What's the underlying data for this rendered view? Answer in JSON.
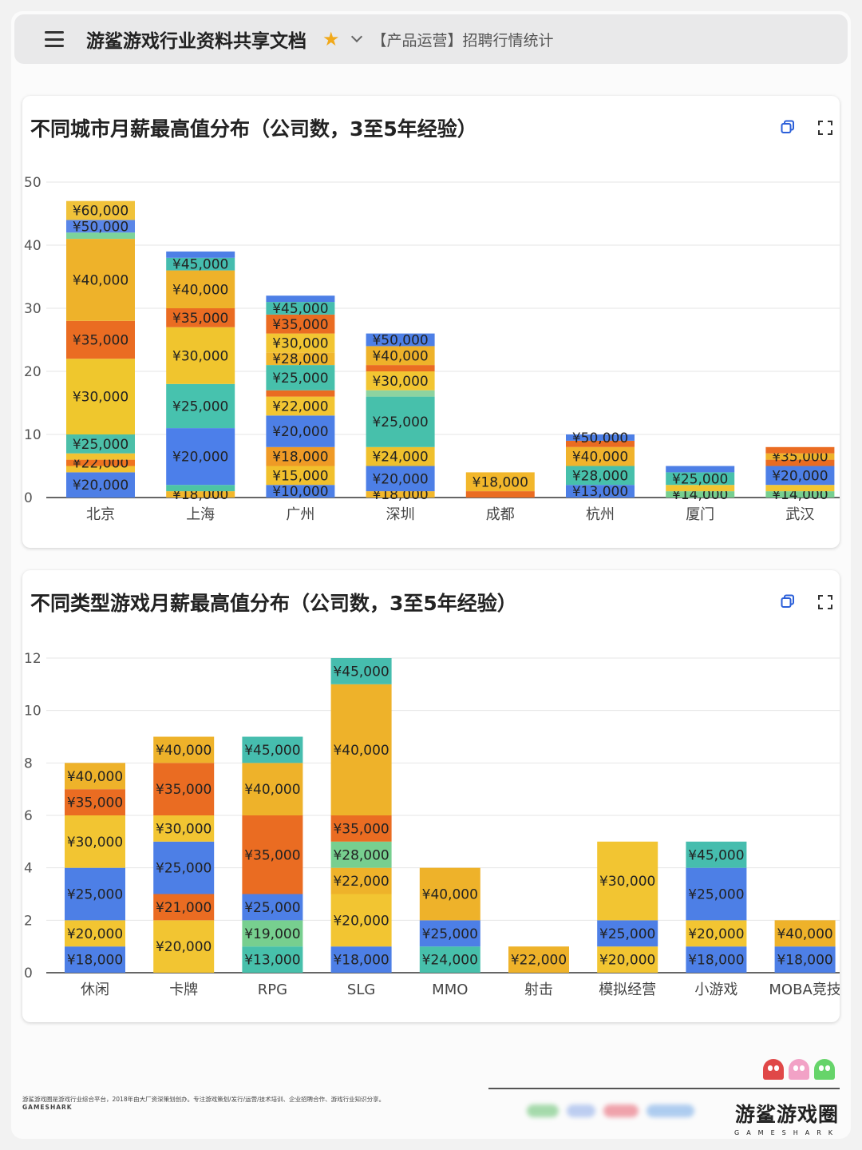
{
  "header": {
    "doc_title": "游鲨游戏行业资料共享文档",
    "sheet_name": "【产品运营】招聘行情统计"
  },
  "icons": {
    "menu": "menu-icon",
    "star": "star-icon",
    "dropdown": "chevron-down-icon",
    "copy": "copy-icon",
    "expand": "expand-icon"
  },
  "chart_data": [
    {
      "type": "bar",
      "stacked": true,
      "title": "不同城市月薪最高值分布（公司数，3至5年经验）",
      "xlabel": "",
      "ylabel": "",
      "ylim": [
        0,
        50
      ],
      "yticks": [
        "0",
        "10",
        "20",
        "30",
        "40",
        "50"
      ],
      "grid": true,
      "categories": [
        "北京",
        "上海",
        "广州",
        "深圳",
        "成都",
        "杭州",
        "厦门",
        "武汉"
      ],
      "stacks": [
        [
          {
            "value": 4,
            "label": "¥20,000",
            "color": "#4e7fe6"
          },
          {
            "value": 1,
            "label": "",
            "color": "#f2c232"
          },
          {
            "value": 1,
            "label": "¥22,000",
            "color": "#ef7320"
          },
          {
            "value": 1,
            "label": "",
            "color": "#f2c232"
          },
          {
            "value": 3,
            "label": "¥25,000",
            "color": "#4cbfa8"
          },
          {
            "value": 12,
            "label": "¥30,000",
            "color": "#efc72d"
          },
          {
            "value": 6,
            "label": "¥35,000",
            "color": "#ea6c22"
          },
          {
            "value": 13,
            "label": "¥40,000",
            "color": "#eeb22a"
          },
          {
            "value": 1,
            "label": "",
            "color": "#7cd39b"
          },
          {
            "value": 2,
            "label": "¥50,000",
            "color": "#5a86e8"
          },
          {
            "value": 3,
            "label": "¥60,000",
            "color": "#f0c23a"
          }
        ],
        [
          {
            "value": 1,
            "label": "¥18,000",
            "color": "#f2b72b"
          },
          {
            "value": 1,
            "label": "",
            "color": "#4cc4a4"
          },
          {
            "value": 9,
            "label": "¥20,000",
            "color": "#4c7fea"
          },
          {
            "value": 7,
            "label": "¥25,000",
            "color": "#47c2ae"
          },
          {
            "value": 9,
            "label": "¥30,000",
            "color": "#f0c52e"
          },
          {
            "value": 3,
            "label": "¥35,000",
            "color": "#ea6c22"
          },
          {
            "value": 6,
            "label": "¥40,000",
            "color": "#eeb22a"
          },
          {
            "value": 2,
            "label": "¥45,000",
            "color": "#45bcae"
          },
          {
            "value": 1,
            "label": "",
            "color": "#4d7fe6"
          }
        ],
        [
          {
            "value": 2,
            "label": "¥10,000",
            "color": "#4d7fe6"
          },
          {
            "value": 3,
            "label": "¥15,000",
            "color": "#f1c02d"
          },
          {
            "value": 3,
            "label": "¥18,000",
            "color": "#ef9a26"
          },
          {
            "value": 5,
            "label": "¥20,000",
            "color": "#4d7fe6"
          },
          {
            "value": 3,
            "label": "¥22,000",
            "color": "#f2c532"
          },
          {
            "value": 1,
            "label": "",
            "color": "#ea6c22"
          },
          {
            "value": 4,
            "label": "¥25,000",
            "color": "#47c0ab"
          },
          {
            "value": 2,
            "label": "¥28,000",
            "color": "#f0b62d"
          },
          {
            "value": 3,
            "label": "¥30,000",
            "color": "#f2c532"
          },
          {
            "value": 3,
            "label": "¥35,000",
            "color": "#ea6c22"
          },
          {
            "value": 2,
            "label": "¥45,000",
            "color": "#46bdae"
          },
          {
            "value": 1,
            "label": "",
            "color": "#4d7fe6"
          }
        ],
        [
          {
            "value": 1,
            "label": "¥18,000",
            "color": "#f2b72b"
          },
          {
            "value": 4,
            "label": "¥20,000",
            "color": "#4d7fe6"
          },
          {
            "value": 3,
            "label": "¥24,000",
            "color": "#efc02d"
          },
          {
            "value": 8,
            "label": "¥25,000",
            "color": "#47c0ab"
          },
          {
            "value": 1,
            "label": "",
            "color": "#8dd3a0"
          },
          {
            "value": 3,
            "label": "¥30,000",
            "color": "#f2c532"
          },
          {
            "value": 1,
            "label": "",
            "color": "#ea6c22"
          },
          {
            "value": 3,
            "label": "¥40,000",
            "color": "#eeb22a"
          },
          {
            "value": 2,
            "label": "¥50,000",
            "color": "#4d7fe6"
          }
        ],
        [
          {
            "value": 1,
            "label": "",
            "color": "#ea6c22"
          },
          {
            "value": 3,
            "label": "¥18,000",
            "color": "#f2b72b"
          }
        ],
        [
          {
            "value": 2,
            "label": "¥13,000",
            "color": "#4d7fe6"
          },
          {
            "value": 3,
            "label": "¥28,000",
            "color": "#47c0ab"
          },
          {
            "value": 3,
            "label": "¥40,000",
            "color": "#f0b32c"
          },
          {
            "value": 1,
            "label": "",
            "color": "#ea6c22"
          },
          {
            "value": 1,
            "label": "¥50,000",
            "color": "#4d7fe6"
          }
        ],
        [
          {
            "value": 1,
            "label": "¥14,000",
            "color": "#77cf8f"
          },
          {
            "value": 1,
            "label": "",
            "color": "#f2c532"
          },
          {
            "value": 2,
            "label": "¥25,000",
            "color": "#47c0ab"
          },
          {
            "value": 1,
            "label": "",
            "color": "#4d7fe6"
          }
        ],
        [
          {
            "value": 1,
            "label": "¥14,000",
            "color": "#77cf8f"
          },
          {
            "value": 1,
            "label": "",
            "color": "#f2c532"
          },
          {
            "value": 3,
            "label": "¥20,000",
            "color": "#4d7fe6"
          },
          {
            "value": 1,
            "label": "",
            "color": "#ea6c22"
          },
          {
            "value": 1,
            "label": "¥35,000",
            "color": "#eeb22a"
          },
          {
            "value": 1,
            "label": "",
            "color": "#ea6c22"
          }
        ]
      ]
    },
    {
      "type": "bar",
      "stacked": true,
      "title": "不同类型游戏月薪最高值分布（公司数，3至5年经验）",
      "xlabel": "",
      "ylabel": "",
      "ylim": [
        0,
        12
      ],
      "yticks": [
        "0",
        "2",
        "4",
        "6",
        "8",
        "10",
        "12"
      ],
      "grid": true,
      "categories": [
        "休闲",
        "卡牌",
        "RPG",
        "SLG",
        "MMO",
        "射击",
        "模拟经营",
        "小游戏",
        "MOBA竞技"
      ],
      "stacks": [
        [
          {
            "value": 1,
            "label": "¥18,000",
            "color": "#4d7fe6"
          },
          {
            "value": 1,
            "label": "¥20,000",
            "color": "#f2c532"
          },
          {
            "value": 2,
            "label": "¥25,000",
            "color": "#4d7fe6"
          },
          {
            "value": 2,
            "label": "¥30,000",
            "color": "#f2c532"
          },
          {
            "value": 1,
            "label": "¥35,000",
            "color": "#ea6c22"
          },
          {
            "value": 1,
            "label": "¥40,000",
            "color": "#eeb22a"
          }
        ],
        [
          {
            "value": 2,
            "label": "¥20,000",
            "color": "#f2c532"
          },
          {
            "value": 1,
            "label": "¥21,000",
            "color": "#ea6c22"
          },
          {
            "value": 2,
            "label": "¥25,000",
            "color": "#4d7fe6"
          },
          {
            "value": 1,
            "label": "¥30,000",
            "color": "#f2c532"
          },
          {
            "value": 2,
            "label": "¥35,000",
            "color": "#ea6c22"
          },
          {
            "value": 1,
            "label": "¥40,000",
            "color": "#eeb22a"
          }
        ],
        [
          {
            "value": 1,
            "label": "¥13,000",
            "color": "#47c0ab"
          },
          {
            "value": 1,
            "label": "¥19,000",
            "color": "#77cf8f"
          },
          {
            "value": 1,
            "label": "¥25,000",
            "color": "#4d7fe6"
          },
          {
            "value": 3,
            "label": "¥35,000",
            "color": "#ea6c22"
          },
          {
            "value": 2,
            "label": "¥40,000",
            "color": "#eeb22a"
          },
          {
            "value": 1,
            "label": "¥45,000",
            "color": "#46bdae"
          }
        ],
        [
          {
            "value": 1,
            "label": "¥18,000",
            "color": "#4d7fe6"
          },
          {
            "value": 2,
            "label": "¥20,000",
            "color": "#f2c532"
          },
          {
            "value": 1,
            "label": "¥22,000",
            "color": "#eeb22a"
          },
          {
            "value": 1,
            "label": "¥28,000",
            "color": "#77cf8f"
          },
          {
            "value": 1,
            "label": "¥35,000",
            "color": "#ea6c22"
          },
          {
            "value": 5,
            "label": "¥40,000",
            "color": "#eeb22a"
          },
          {
            "value": 1,
            "label": "¥45,000",
            "color": "#46bdae"
          }
        ],
        [
          {
            "value": 1,
            "label": "¥24,000",
            "color": "#47c0ab"
          },
          {
            "value": 1,
            "label": "¥25,000",
            "color": "#4d7fe6"
          },
          {
            "value": 2,
            "label": "¥40,000",
            "color": "#eeb22a"
          }
        ],
        [
          {
            "value": 1,
            "label": "¥22,000",
            "color": "#eeb22a"
          }
        ],
        [
          {
            "value": 1,
            "label": "¥20,000",
            "color": "#f2c532"
          },
          {
            "value": 1,
            "label": "¥25,000",
            "color": "#4d7fe6"
          },
          {
            "value": 3,
            "label": "¥30,000",
            "color": "#f2c532"
          }
        ],
        [
          {
            "value": 1,
            "label": "¥18,000",
            "color": "#4d7fe6"
          },
          {
            "value": 1,
            "label": "¥20,000",
            "color": "#f2c532"
          },
          {
            "value": 2,
            "label": "¥25,000",
            "color": "#4d7fe6"
          },
          {
            "value": 1,
            "label": "¥45,000",
            "color": "#46bdae"
          }
        ],
        [
          {
            "value": 1,
            "label": "¥18,000",
            "color": "#4d7fe6"
          },
          {
            "value": 1,
            "label": "¥40,000",
            "color": "#eeb22a"
          }
        ]
      ]
    }
  ],
  "footer": {
    "description": "游鲨游戏圈是游戏行业综合平台，2018年由大厂资深策划创办。专注游戏策划/发行/运营/技术培训、企业招聘合作、游戏行业知识分享。",
    "brand_en": "GAMESHARK",
    "logo_name": "游鲨游戏圈",
    "logo_sub": "GAMESHARK"
  },
  "colors": {
    "ghost_red": "#e04848",
    "ghost_pink": "#f2a2c6",
    "ghost_green": "#66d46a"
  }
}
